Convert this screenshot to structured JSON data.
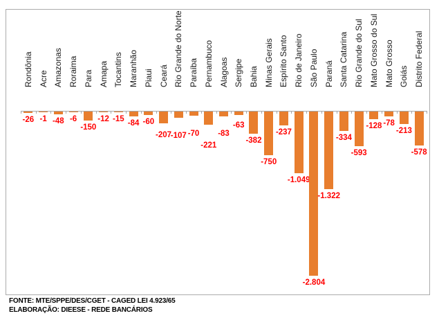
{
  "chart_data": {
    "type": "bar",
    "title": "",
    "xlabel": "",
    "ylabel": "",
    "categories": [
      "Rondônia",
      "Acre",
      "Amazonas",
      "Roraima",
      "Para",
      "Amapa",
      "Tocantins",
      "Maranhão",
      "Piaui",
      "Ceará",
      "Rio Grande do Norte",
      "Paraíba",
      "Pernambuco",
      "Alagoas",
      "Sergipe",
      "Bahia",
      "Minas Gerais",
      "Espírito Santo",
      "Rio de Janeiro",
      "São Paulo",
      "Paraná",
      "Santa Catarina",
      "Rio Grande do Sul",
      "Mato Grosso do Sul",
      "Mato Grosso",
      "Goiás",
      "Distrito Federal"
    ],
    "values": [
      -26,
      -1,
      -48,
      -6,
      -150,
      -12,
      -15,
      -84,
      -60,
      -207,
      -107,
      -70,
      -221,
      -83,
      -63,
      -382,
      -750,
      -237,
      -1049,
      -2804,
      -1322,
      -334,
      -593,
      -128,
      -78,
      -213,
      -578
    ],
    "value_labels": [
      "-26",
      "-1",
      "-48",
      "-6",
      "-150",
      "-12",
      "-15",
      "-84",
      "-60",
      "-207",
      "-107",
      "-70",
      "-221",
      "-83",
      "-63",
      "-382",
      "-750",
      "-237",
      "-1.049",
      "-2.804",
      "-1.322",
      "-334",
      "-593",
      "-128",
      "-78",
      "-213",
      "-578"
    ],
    "ylim": [
      -3000,
      0
    ],
    "grid": false,
    "legend": "none",
    "bar_color": "#e87e2e",
    "label_color": "#ff0000",
    "axis_color": "#a6a6a6",
    "frame_color": "#ababab"
  },
  "footer": {
    "fonte": "FONTE: MTE/SPPE/DES/CGET - CAGED LEI 4.923/65",
    "elaboracao": "ELABORAÇÃO: DIEESE - REDE BANCÁRIOS"
  }
}
